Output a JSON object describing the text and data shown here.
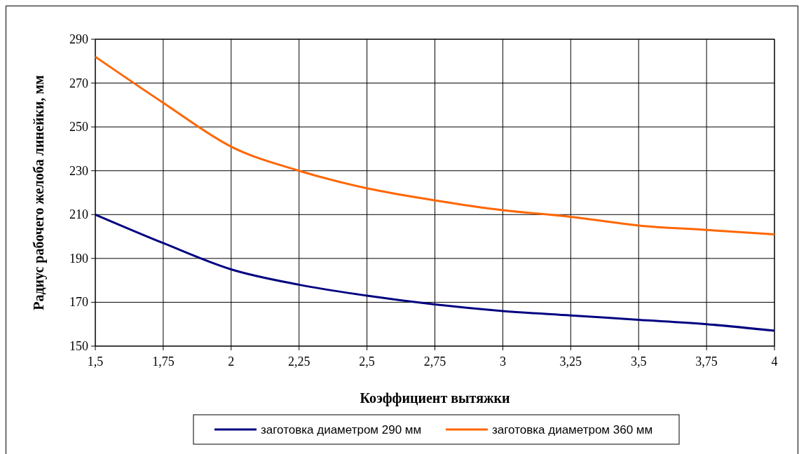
{
  "chart_data": {
    "type": "line",
    "xlabel": "Коэффициент  вытяжки",
    "ylabel": "Радиус рабочего желоба линейки, мм",
    "x": [
      1.5,
      1.75,
      2,
      2.25,
      2.5,
      2.75,
      3,
      3.25,
      3.5,
      3.75,
      4
    ],
    "series": [
      {
        "name": "заготовка диаметром 290 мм",
        "color": "#000080",
        "values": [
          210,
          197,
          185,
          178,
          173,
          169,
          166,
          164,
          162,
          160,
          157
        ]
      },
      {
        "name": "заготовка диаметром 360 мм",
        "color": "#ff6600",
        "values": [
          282,
          261,
          241,
          230,
          222,
          216.5,
          212,
          209,
          205,
          203,
          201
        ]
      }
    ],
    "xlim": [
      1.5,
      4
    ],
    "xticks": [
      {
        "value": 1.5,
        "label": "1,5"
      },
      {
        "value": 1.75,
        "label": "1,75"
      },
      {
        "value": 2,
        "label": "2"
      },
      {
        "value": 2.25,
        "label": "2,25"
      },
      {
        "value": 2.5,
        "label": "2,5"
      },
      {
        "value": 2.75,
        "label": "2,75"
      },
      {
        "value": 3,
        "label": "3"
      },
      {
        "value": 3.25,
        "label": "3,25"
      },
      {
        "value": 3.5,
        "label": "3,5"
      },
      {
        "value": 3.75,
        "label": "3,75"
      },
      {
        "value": 4,
        "label": "4"
      }
    ],
    "ylim": [
      150,
      290
    ],
    "yticks": [
      150,
      170,
      190,
      210,
      230,
      250,
      270,
      290
    ],
    "grid": true,
    "legend": "bottom",
    "marker": "none",
    "line_style": "solid"
  }
}
